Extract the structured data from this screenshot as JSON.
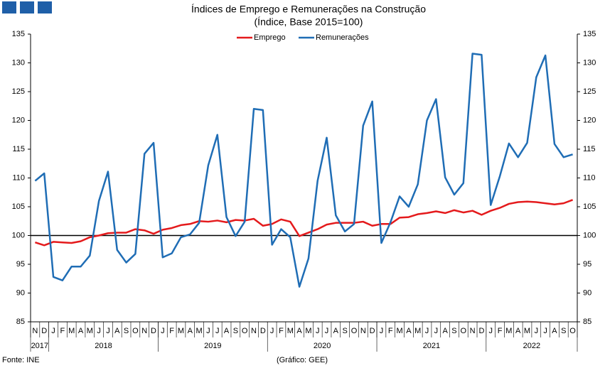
{
  "chart_data": {
    "type": "line",
    "title": "Índices de Emprego e Remunerações na Construção",
    "subtitle": "(Índice, Base 2015=100)",
    "source": "Fonte: INE",
    "credit": "(Gráfico: GEE)",
    "categories": [
      "N",
      "D",
      "J",
      "F",
      "M",
      "A",
      "M",
      "J",
      "J",
      "A",
      "S",
      "O",
      "N",
      "D",
      "J",
      "F",
      "M",
      "A",
      "M",
      "J",
      "J",
      "A",
      "S",
      "O",
      "N",
      "D",
      "J",
      "F",
      "M",
      "A",
      "M",
      "J",
      "J",
      "A",
      "S",
      "O",
      "N",
      "D",
      "J",
      "F",
      "M",
      "A",
      "M",
      "J",
      "J",
      "A",
      "S",
      "O",
      "N",
      "D",
      "J",
      "F",
      "M",
      "A",
      "M",
      "J",
      "J",
      "A",
      "S",
      "O"
    ],
    "year_groups": [
      {
        "label": "2017",
        "span": 2
      },
      {
        "label": "2018",
        "span": 12
      },
      {
        "label": "2019",
        "span": 12
      },
      {
        "label": "2020",
        "span": 12
      },
      {
        "label": "2021",
        "span": 12
      },
      {
        "label": "2022",
        "span": 10
      }
    ],
    "series": [
      {
        "name": "Emprego",
        "color": "#e41a1c",
        "values": [
          98.8,
          98.3,
          98.9,
          98.8,
          98.7,
          99.0,
          99.7,
          100.0,
          100.4,
          100.5,
          100.5,
          101.1,
          100.9,
          100.3,
          101.0,
          101.3,
          101.8,
          102.0,
          102.5,
          102.4,
          102.6,
          102.3,
          102.7,
          102.6,
          102.9,
          101.7,
          102.0,
          102.8,
          102.4,
          99.9,
          100.5,
          101.1,
          101.9,
          102.2,
          102.2,
          102.2,
          102.4,
          101.7,
          102.0,
          102.0,
          103.1,
          103.2,
          103.7,
          103.9,
          104.2,
          103.9,
          104.4,
          104.0,
          104.3,
          103.6,
          104.3,
          104.8,
          105.5,
          105.8,
          105.9,
          105.8,
          105.6,
          105.4,
          105.6,
          106.2
        ]
      },
      {
        "name": "Remunerações",
        "color": "#1f6db5",
        "values": [
          109.5,
          110.8,
          92.8,
          92.2,
          94.6,
          94.6,
          96.5,
          106.0,
          111.1,
          97.5,
          95.3,
          96.8,
          114.2,
          116.1,
          96.2,
          96.9,
          99.7,
          100.2,
          102.2,
          112.2,
          117.5,
          103.2,
          99.9,
          102.4,
          122.0,
          121.8,
          98.4,
          101.1,
          99.7,
          91.1,
          96.0,
          109.5,
          117.0,
          103.5,
          100.7,
          102.0,
          119.1,
          123.3,
          98.7,
          102.3,
          106.8,
          105.0,
          108.9,
          120.0,
          123.7,
          110.1,
          107.1,
          109.1,
          131.6,
          131.4,
          105.3,
          110.3,
          116.0,
          113.6,
          116.1,
          127.5,
          131.3,
          115.9,
          113.6,
          114.1
        ]
      }
    ],
    "reference_line": 100,
    "ylim": [
      85,
      135
    ],
    "yticks": [
      85,
      90,
      95,
      100,
      105,
      110,
      115,
      120,
      125,
      130,
      135
    ],
    "y2lim": [
      85,
      135
    ],
    "y2ticks": [
      85,
      90,
      95,
      100,
      105,
      110,
      115,
      120,
      125,
      130,
      135
    ],
    "grid": false,
    "legend": "top"
  }
}
